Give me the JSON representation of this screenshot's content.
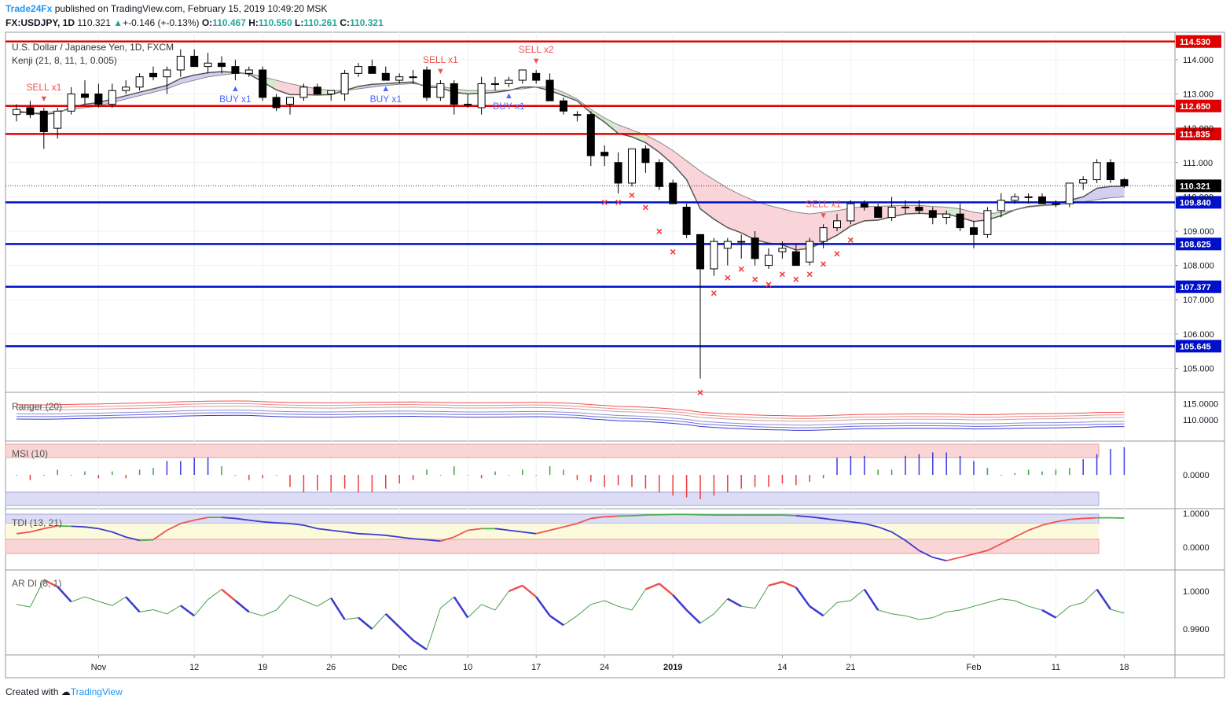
{
  "header": {
    "publisher": "Trade24Fx",
    "published_text": " published on TradingView.com, February 15, 2019 10:49:20 MSK",
    "symbol": "FX:USDJPY, 1D",
    "last": "110.321",
    "change": "+-0.146 (+-0.13%)",
    "o_label": "O:",
    "o_val": "110.467",
    "h_label": "H:",
    "h_val": "110.550",
    "l_label": "L:",
    "l_val": "110.261",
    "c_label": "C:",
    "c_val": "110.321"
  },
  "footer": {
    "created_with": "Created with",
    "brand": "TradingView"
  },
  "chart_data": {
    "type": "candlestick",
    "title": "U.S. Dollar / Japanese Yen, 1D, FXCM",
    "indicator": "Kenji (21, 8, 11, 1, 0.005)",
    "ylim": [
      104.3,
      114.8
    ],
    "y_ticks": [
      105.0,
      106.0,
      107.0,
      108.0,
      109.0,
      110.0,
      111.0,
      112.0,
      113.0,
      114.0
    ],
    "y_tick_labels": [
      "105.000",
      "106.000",
      "107.000",
      "108.000",
      "109.000",
      "110.000",
      "111.000",
      "112.000",
      "113.000",
      "114.000"
    ],
    "x_ticks": [
      {
        "label": "Nov",
        "bar": 6
      },
      {
        "label": "12",
        "bar": 13
      },
      {
        "label": "19",
        "bar": 18
      },
      {
        "label": "26",
        "bar": 23
      },
      {
        "label": "Dec",
        "bar": 28
      },
      {
        "label": "10",
        "bar": 33
      },
      {
        "label": "17",
        "bar": 38
      },
      {
        "label": "24",
        "bar": 43
      },
      {
        "label": "2019",
        "bar": 48
      },
      {
        "label": "14",
        "bar": 56
      },
      {
        "label": "21",
        "bar": 61
      },
      {
        "label": "Feb",
        "bar": 70
      },
      {
        "label": "11",
        "bar": 76
      },
      {
        "label": "18",
        "bar": 81
      }
    ],
    "last_price": {
      "value": 110.321,
      "label": "110.321"
    },
    "levels": [
      {
        "value": 114.53,
        "label": "114.530",
        "color": "#e00000"
      },
      {
        "value": 112.65,
        "label": "112.650",
        "color": "#e00000"
      },
      {
        "value": 111.835,
        "label": "111.835",
        "color": "#e00000"
      },
      {
        "value": 109.84,
        "label": "109.840",
        "color": "#0010c8"
      },
      {
        "value": 108.625,
        "label": "108.625",
        "color": "#0010c8"
      },
      {
        "value": 107.377,
        "label": "107.377",
        "color": "#0010c8"
      },
      {
        "value": 105.645,
        "label": "105.645",
        "color": "#0010c8"
      }
    ],
    "ohlc": [
      [
        112.4,
        112.7,
        112.2,
        112.55
      ],
      [
        112.6,
        112.8,
        112.3,
        112.4
      ],
      [
        112.5,
        112.6,
        111.4,
        111.9
      ],
      [
        112.0,
        112.6,
        111.7,
        112.5
      ],
      [
        112.5,
        113.2,
        112.4,
        113.0
      ],
      [
        113.0,
        113.4,
        112.7,
        112.9
      ],
      [
        113.0,
        113.3,
        112.6,
        112.7
      ],
      [
        112.7,
        113.3,
        112.6,
        113.1
      ],
      [
        113.1,
        113.4,
        113.0,
        113.2
      ],
      [
        113.2,
        113.6,
        113.1,
        113.5
      ],
      [
        113.6,
        113.8,
        113.4,
        113.5
      ],
      [
        113.5,
        113.8,
        113.0,
        113.7
      ],
      [
        113.7,
        114.3,
        113.5,
        114.1
      ],
      [
        114.1,
        114.3,
        113.8,
        113.8
      ],
      [
        113.8,
        114.2,
        113.6,
        113.9
      ],
      [
        113.9,
        114.1,
        113.6,
        113.8
      ],
      [
        113.8,
        114.0,
        113.4,
        113.6
      ],
      [
        113.6,
        113.8,
        113.5,
        113.7
      ],
      [
        113.7,
        113.8,
        112.8,
        112.9
      ],
      [
        112.9,
        113.0,
        112.5,
        112.6
      ],
      [
        112.7,
        112.8,
        112.4,
        112.9
      ],
      [
        112.9,
        113.3,
        112.8,
        113.2
      ],
      [
        113.2,
        113.3,
        113.0,
        113.0
      ],
      [
        113.0,
        113.1,
        112.8,
        113.1
      ],
      [
        113.0,
        113.7,
        112.8,
        113.6
      ],
      [
        113.6,
        113.9,
        113.5,
        113.8
      ],
      [
        113.8,
        114.0,
        113.6,
        113.6
      ],
      [
        113.6,
        113.8,
        113.4,
        113.4
      ],
      [
        113.4,
        113.6,
        113.3,
        113.5
      ],
      [
        113.5,
        113.7,
        113.3,
        113.5
      ],
      [
        113.7,
        113.8,
        112.8,
        112.9
      ],
      [
        112.9,
        113.4,
        112.8,
        113.3
      ],
      [
        113.3,
        113.4,
        112.4,
        112.7
      ],
      [
        112.7,
        113.0,
        112.6,
        112.7
      ],
      [
        112.6,
        113.5,
        112.4,
        113.3
      ],
      [
        113.3,
        113.5,
        113.1,
        113.3
      ],
      [
        113.3,
        113.5,
        113.2,
        113.4
      ],
      [
        113.4,
        113.7,
        113.3,
        113.7
      ],
      [
        113.6,
        113.7,
        113.3,
        113.4
      ],
      [
        113.4,
        113.6,
        112.8,
        112.8
      ],
      [
        112.8,
        112.9,
        112.4,
        112.5
      ],
      [
        112.4,
        112.5,
        112.2,
        112.4
      ],
      [
        112.4,
        112.5,
        110.9,
        111.2
      ],
      [
        111.3,
        111.5,
        110.9,
        111.2
      ],
      [
        111.0,
        111.3,
        110.1,
        110.4
      ],
      [
        110.4,
        111.4,
        110.3,
        111.4
      ],
      [
        111.4,
        111.5,
        110.7,
        111.0
      ],
      [
        111.0,
        111.1,
        110.2,
        110.3
      ],
      [
        110.4,
        110.5,
        109.8,
        109.8
      ],
      [
        109.7,
        109.8,
        108.8,
        108.9
      ],
      [
        108.9,
        108.9,
        104.7,
        107.9
      ],
      [
        107.9,
        108.8,
        107.7,
        108.7
      ],
      [
        108.5,
        108.8,
        108.0,
        108.7
      ],
      [
        108.7,
        108.9,
        108.2,
        108.7
      ],
      [
        108.8,
        109.0,
        108.0,
        108.2
      ],
      [
        108.0,
        108.5,
        107.9,
        108.3
      ],
      [
        108.4,
        108.7,
        108.2,
        108.5
      ],
      [
        108.4,
        108.6,
        108.0,
        108.0
      ],
      [
        108.1,
        108.8,
        108.0,
        108.7
      ],
      [
        108.7,
        109.2,
        108.5,
        109.1
      ],
      [
        109.1,
        109.5,
        109.0,
        109.3
      ],
      [
        109.3,
        109.9,
        109.2,
        109.8
      ],
      [
        109.8,
        109.9,
        109.6,
        109.7
      ],
      [
        109.7,
        109.8,
        109.4,
        109.4
      ],
      [
        109.4,
        110.0,
        109.3,
        109.7
      ],
      [
        109.7,
        109.9,
        109.5,
        109.7
      ],
      [
        109.7,
        109.9,
        109.5,
        109.6
      ],
      [
        109.6,
        109.7,
        109.2,
        109.4
      ],
      [
        109.4,
        109.6,
        109.2,
        109.5
      ],
      [
        109.5,
        109.8,
        109.0,
        109.1
      ],
      [
        109.1,
        109.3,
        108.5,
        108.9
      ],
      [
        108.9,
        109.7,
        108.8,
        109.6
      ],
      [
        109.6,
        110.1,
        109.4,
        109.9
      ],
      [
        109.9,
        110.1,
        109.8,
        110.0
      ],
      [
        110.0,
        110.1,
        109.8,
        110.0
      ],
      [
        110.0,
        110.1,
        109.8,
        109.8
      ],
      [
        109.8,
        109.9,
        109.7,
        109.8
      ],
      [
        109.8,
        110.4,
        109.7,
        110.4
      ],
      [
        110.4,
        110.6,
        110.2,
        110.5
      ],
      [
        110.5,
        111.1,
        110.4,
        111.0
      ],
      [
        111.0,
        111.1,
        110.4,
        110.5
      ],
      [
        110.5,
        110.55,
        110.26,
        110.32
      ]
    ],
    "kenji_fast": [
      112.5,
      112.45,
      112.4,
      112.45,
      112.6,
      112.7,
      112.75,
      112.85,
      112.95,
      113.05,
      113.15,
      113.25,
      113.45,
      113.55,
      113.62,
      113.65,
      113.63,
      113.58,
      113.35,
      113.12,
      112.98,
      112.98,
      112.97,
      112.98,
      113.1,
      113.22,
      113.28,
      113.3,
      113.33,
      113.35,
      113.2,
      113.18,
      113.05,
      113.0,
      113.02,
      113.05,
      113.1,
      113.2,
      113.2,
      113.1,
      112.95,
      112.8,
      112.45,
      112.18,
      111.85,
      111.75,
      111.58,
      111.3,
      110.95,
      110.5,
      109.65,
      109.35,
      109.1,
      108.95,
      108.75,
      108.65,
      108.6,
      108.45,
      108.5,
      108.68,
      108.88,
      109.15,
      109.3,
      109.32,
      109.42,
      109.5,
      109.52,
      109.5,
      109.5,
      109.4,
      109.28,
      109.33,
      109.45,
      109.62,
      109.72,
      109.75,
      109.78,
      109.9,
      110.0,
      110.25,
      110.3,
      110.31
    ],
    "kenji_slow": [
      112.45,
      112.45,
      112.45,
      112.5,
      112.55,
      112.6,
      112.65,
      112.75,
      112.85,
      112.95,
      113.05,
      113.15,
      113.3,
      113.4,
      113.5,
      113.55,
      113.6,
      113.6,
      113.5,
      113.4,
      113.3,
      113.22,
      113.15,
      113.1,
      113.1,
      113.15,
      113.2,
      113.25,
      113.28,
      113.3,
      113.25,
      113.22,
      113.15,
      113.1,
      113.1,
      113.1,
      113.12,
      113.15,
      113.2,
      113.2,
      113.05,
      112.85,
      112.55,
      112.3,
      112.1,
      111.95,
      111.8,
      111.6,
      111.35,
      111.05,
      110.75,
      110.5,
      110.25,
      110.05,
      109.88,
      109.75,
      109.65,
      109.55,
      109.5,
      109.55,
      109.6,
      109.67,
      109.72,
      109.72,
      109.74,
      109.75,
      109.75,
      109.72,
      109.7,
      109.65,
      109.55,
      109.5,
      109.55,
      109.62,
      109.7,
      109.74,
      109.76,
      109.8,
      109.85,
      109.92,
      109.97,
      110.0
    ],
    "signals": [
      {
        "bar": 2,
        "type": "sell",
        "label": "SELL x1"
      },
      {
        "bar": 16,
        "type": "buy",
        "label": "BUY x1"
      },
      {
        "bar": 27,
        "type": "buy",
        "label": "BUY x1"
      },
      {
        "bar": 31,
        "type": "sell",
        "label": "SELL x1"
      },
      {
        "bar": 36,
        "type": "buy",
        "label": "BUY x1"
      },
      {
        "bar": 38,
        "type": "sell",
        "label": "SELL x2"
      },
      {
        "bar": 59,
        "type": "sell",
        "label": "SELL x1"
      }
    ],
    "stop_marks": [
      {
        "bar": 43,
        "value": 109.85
      },
      {
        "bar": 44,
        "value": 109.85
      },
      {
        "bar": 45,
        "value": 110.05
      },
      {
        "bar": 46,
        "value": 109.7
      },
      {
        "bar": 47,
        "value": 109.0
      },
      {
        "bar": 48,
        "value": 108.4
      },
      {
        "bar": 50,
        "value": 104.3
      },
      {
        "bar": 51,
        "value": 107.2
      },
      {
        "bar": 52,
        "value": 107.65
      },
      {
        "bar": 53,
        "value": 107.9
      },
      {
        "bar": 54,
        "value": 107.6
      },
      {
        "bar": 55,
        "value": 107.45
      },
      {
        "bar": 56,
        "value": 107.75
      },
      {
        "bar": 57,
        "value": 107.6
      },
      {
        "bar": 58,
        "value": 107.75
      },
      {
        "bar": 59,
        "value": 108.05
      },
      {
        "bar": 60,
        "value": 108.35
      },
      {
        "bar": 61,
        "value": 108.75
      }
    ],
    "panels": {
      "ranger": {
        "title": "Ranger (20)",
        "ticks": [
          "115.0000",
          "110.0000"
        ]
      },
      "msi": {
        "title": "MSI (10)",
        "ticks": [
          "0.0000"
        ],
        "values": [
          0,
          -0.3,
          0,
          0.3,
          0,
          0.2,
          -0.2,
          0.2,
          -0.2,
          0.3,
          0.4,
          0.8,
          0.8,
          1.0,
          1.0,
          0.5,
          0,
          -0.3,
          -0.2,
          0,
          -0.7,
          -1.0,
          -0.9,
          -1.0,
          -0.8,
          -1.0,
          -1.0,
          -0.8,
          -0.5,
          -0.3,
          0.3,
          0,
          0.5,
          0,
          -0.2,
          0.2,
          0,
          0.3,
          0,
          0.5,
          0.3,
          -0.3,
          -0.4,
          -0.7,
          -0.6,
          -0.7,
          -0.8,
          -1.0,
          -1.2,
          -1.3,
          -1.4,
          -1.2,
          -1.0,
          -0.8,
          -0.7,
          -0.7,
          -0.5,
          -0.6,
          -0.4,
          -0.2,
          1.0,
          1.1,
          1.1,
          0.3,
          0.3,
          1.1,
          1.2,
          1.3,
          1.3,
          1.1,
          0.8,
          0.4,
          0,
          0.1,
          0.3,
          0.2,
          0.3,
          0.4,
          0.9,
          1.2,
          1.5,
          1.6
        ]
      },
      "tdi": {
        "title": "TDI (13, 21)",
        "ticks": [
          "1.0000",
          "0.0000"
        ],
        "values": [
          0.4,
          0.45,
          0.55,
          0.63,
          0.62,
          0.6,
          0.55,
          0.45,
          0.3,
          0.2,
          0.22,
          0.5,
          0.7,
          0.8,
          0.88,
          0.88,
          0.85,
          0.8,
          0.75,
          0.72,
          0.7,
          0.65,
          0.55,
          0.5,
          0.45,
          0.4,
          0.38,
          0.35,
          0.3,
          0.25,
          0.22,
          0.18,
          0.3,
          0.5,
          0.55,
          0.55,
          0.5,
          0.45,
          0.4,
          0.5,
          0.6,
          0.7,
          0.85,
          0.9,
          0.92,
          0.93,
          0.95,
          0.96,
          0.97,
          0.97,
          0.96,
          0.95,
          0.95,
          0.95,
          0.95,
          0.95,
          0.95,
          0.93,
          0.9,
          0.85,
          0.8,
          0.75,
          0.7,
          0.6,
          0.45,
          0.2,
          -0.1,
          -0.3,
          -0.4,
          -0.3,
          -0.2,
          -0.1,
          0.1,
          0.3,
          0.5,
          0.65,
          0.75,
          0.82,
          0.85,
          0.87,
          0.87,
          0.86
        ]
      },
      "ardi": {
        "title": "AR DI (8, 1)",
        "ticks": [
          "1.0000",
          "0.9900"
        ],
        "values": [
          0.9965,
          0.9958,
          1.003,
          1.0012,
          0.9972,
          0.9985,
          0.9973,
          0.9962,
          0.9985,
          0.9945,
          0.9951,
          0.994,
          0.9962,
          0.9935,
          0.9978,
          1.0005,
          0.9975,
          0.9945,
          0.9935,
          0.995,
          0.999,
          0.9975,
          0.996,
          0.9982,
          0.9925,
          0.993,
          0.99,
          0.994,
          0.9905,
          0.987,
          0.9845,
          0.9955,
          0.9985,
          0.993,
          0.9965,
          0.995,
          1.0,
          1.0015,
          0.9985,
          0.9935,
          0.991,
          0.9935,
          0.9965,
          0.9975,
          0.996,
          0.995,
          1.0005,
          1.002,
          0.999,
          0.995,
          0.9915,
          0.994,
          0.998,
          0.996,
          0.9955,
          1.0015,
          1.0025,
          1.001,
          0.996,
          0.9935,
          0.997,
          0.9975,
          1.0005,
          0.995,
          0.994,
          0.9935,
          0.9925,
          0.993,
          0.9945,
          0.995,
          0.996,
          0.997,
          0.998,
          0.9975,
          0.996,
          0.995,
          0.993,
          0.996,
          0.997,
          1.0005,
          0.9952,
          0.9942
        ]
      }
    },
    "colors": {
      "up_body": "#ffffff",
      "down_body": "#000000",
      "wick": "#000000",
      "cloud_up": "#cfe8c6",
      "cloud_down": "#f8cdd2",
      "cloud_neutral": "#c9c8ee",
      "sell": "#ef5350",
      "buy": "#4a66ff",
      "stop": "#ef3b3b",
      "grid": "#eef0f3"
    }
  }
}
